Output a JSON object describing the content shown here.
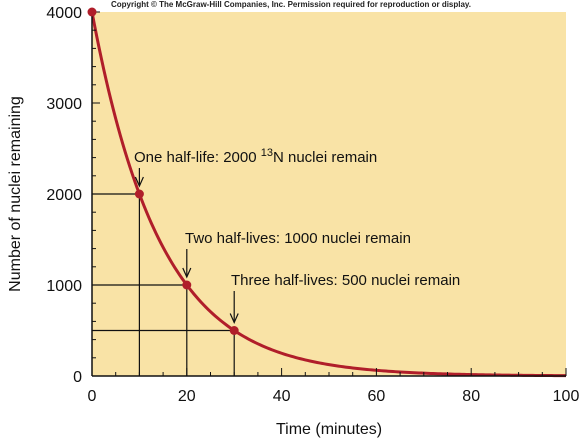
{
  "copyright": "Copyright © The McGraw-Hill Companies, Inc. Permission required for reproduction or display.",
  "colors": {
    "plot_background": "#F9E3A6",
    "curve": "#B01E2A",
    "axis": "#111111"
  },
  "chart_data": {
    "type": "line",
    "xlabel": "Time (minutes)",
    "ylabel": "Number of nuclei remaining",
    "xlim": [
      0,
      100
    ],
    "ylim": [
      0,
      4000
    ],
    "x_ticks": [
      0,
      20,
      40,
      60,
      80,
      100
    ],
    "y_ticks": [
      0,
      1000,
      2000,
      3000,
      4000
    ],
    "x_minor_step": 5,
    "y_minor_step": 200,
    "decay": {
      "initial": 4000,
      "half_life_minutes": 10
    },
    "points": [
      {
        "x": 0,
        "y": 4000
      },
      {
        "x": 10,
        "y": 2000
      },
      {
        "x": 20,
        "y": 1000
      },
      {
        "x": 30,
        "y": 500
      }
    ],
    "annotations": [
      {
        "point_index": 1,
        "prefix": "One half-life:  2000 ",
        "superscript": "13",
        "suffix": "N nuclei remain"
      },
      {
        "point_index": 2,
        "prefix": "Two half-lives:  1000 nuclei remain",
        "superscript": "",
        "suffix": ""
      },
      {
        "point_index": 3,
        "prefix": "Three half-lives:  500 nuclei remain",
        "superscript": "",
        "suffix": ""
      }
    ]
  }
}
